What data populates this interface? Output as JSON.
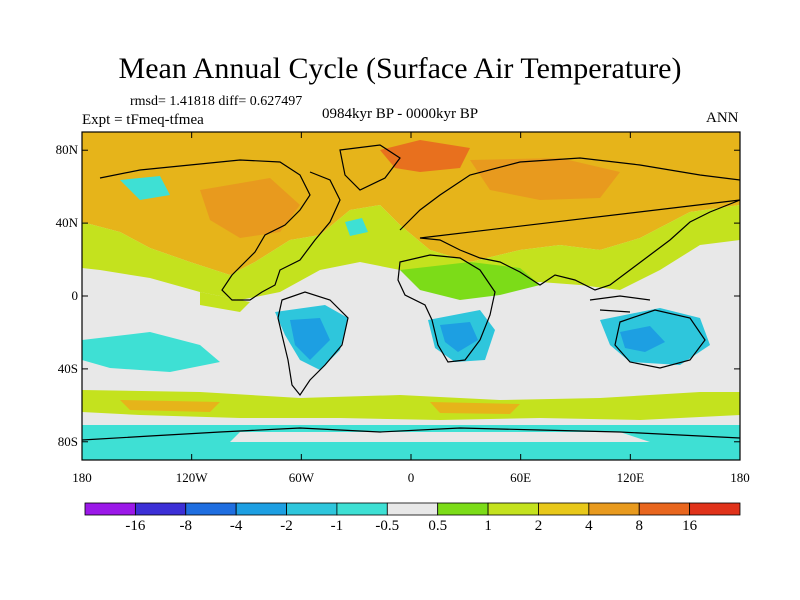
{
  "title": "Mean Annual Cycle (Surface Air Temperature)",
  "stats_line": "rmsd= 1.41818 diff= 0.627497",
  "experiment_label": "Expt = tFmeq-tfmea",
  "period_label": "0984kyr BP - 0000kyr BP",
  "season_label": "ANN",
  "y_axis": {
    "ticks": [
      "80N",
      "40N",
      "0",
      "40S",
      "80S"
    ],
    "values": [
      80,
      40,
      0,
      -40,
      -80
    ],
    "range": [
      -90,
      90
    ]
  },
  "x_axis": {
    "ticks": [
      "180",
      "120W",
      "60W",
      "0",
      "60E",
      "120E",
      "180"
    ],
    "values": [
      -180,
      -120,
      -60,
      0,
      60,
      120,
      180
    ],
    "range": [
      -180,
      180
    ]
  },
  "colorbar": {
    "labels": [
      "-16",
      "-8",
      "-4",
      "-2",
      "-1",
      "-0.5",
      "0.5",
      "1",
      "2",
      "4",
      "8",
      "16"
    ],
    "colors": [
      "#9b18e8",
      "#3c2fd6",
      "#1f6ee0",
      "#1d9fe2",
      "#2ec6dc",
      "#3ee0d4",
      "#e8e8e8",
      "#7cdc18",
      "#c4e21e",
      "#e8c81a",
      "#e89a1e",
      "#e8661e",
      "#e0321a"
    ]
  },
  "colors": {
    "ocean_neutral": "#e8e8e8",
    "warm": "#e6b41a",
    "hot": "#e89a1e",
    "hotter": "#e8701e",
    "mild": "#c4e21e",
    "lightwarm": "#7cdc18",
    "cool": "#3ee0d4",
    "cooler": "#2ec6dc",
    "cold": "#1d9fe2"
  }
}
